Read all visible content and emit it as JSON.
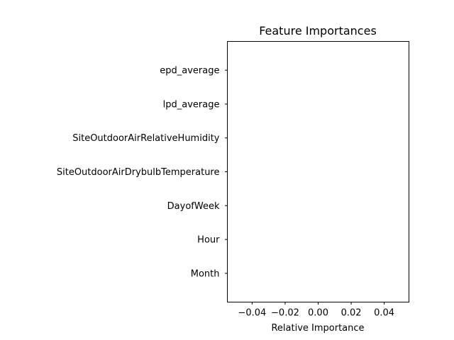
{
  "chart_data": {
    "type": "bar",
    "orientation": "horizontal",
    "title": "Feature Importances",
    "xlabel": "Relative Importance",
    "ylabel": "",
    "categories": [
      "Month",
      "Hour",
      "DayofWeek",
      "SiteOutdoorAirDrybulbTemperature",
      "SiteOutdoorAirRelativeHumidity",
      "lpd_average",
      "epd_average"
    ],
    "values": [
      0,
      0,
      0,
      0,
      0,
      0,
      0
    ],
    "xlim": [
      -0.055,
      0.055
    ],
    "xticks": [
      -0.04,
      -0.02,
      0.0,
      0.02,
      0.04
    ],
    "xtick_labels": [
      "−0.04",
      "−0.02",
      "0.00",
      "0.02",
      "0.04"
    ],
    "grid": false,
    "bar_color": "#1f77b4"
  }
}
